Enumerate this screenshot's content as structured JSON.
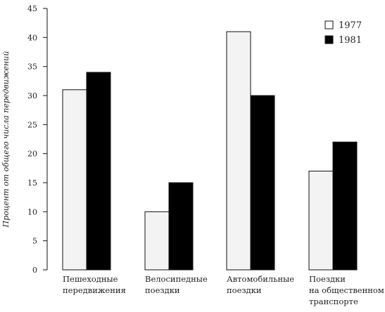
{
  "chart_data": {
    "type": "bar",
    "ylabel": "Процент от общего числа передвижений",
    "ylim": [
      0,
      45
    ],
    "yticks": [
      0,
      5,
      10,
      15,
      20,
      25,
      30,
      35,
      40,
      45
    ],
    "categories": [
      [
        "Пешеходные",
        "передвижения"
      ],
      [
        "Велосипедные",
        "поездки"
      ],
      [
        "Автомобильные",
        "поездки"
      ],
      [
        "Поездки",
        "на общественном",
        "транспорте"
      ]
    ],
    "series": [
      {
        "name": "1977",
        "values": [
          31,
          10,
          41,
          17
        ],
        "color": "#f3f3f3"
      },
      {
        "name": "1981",
        "values": [
          34,
          15,
          30,
          22
        ],
        "color": "#000000"
      }
    ],
    "legend": "top-right",
    "grid": false
  }
}
